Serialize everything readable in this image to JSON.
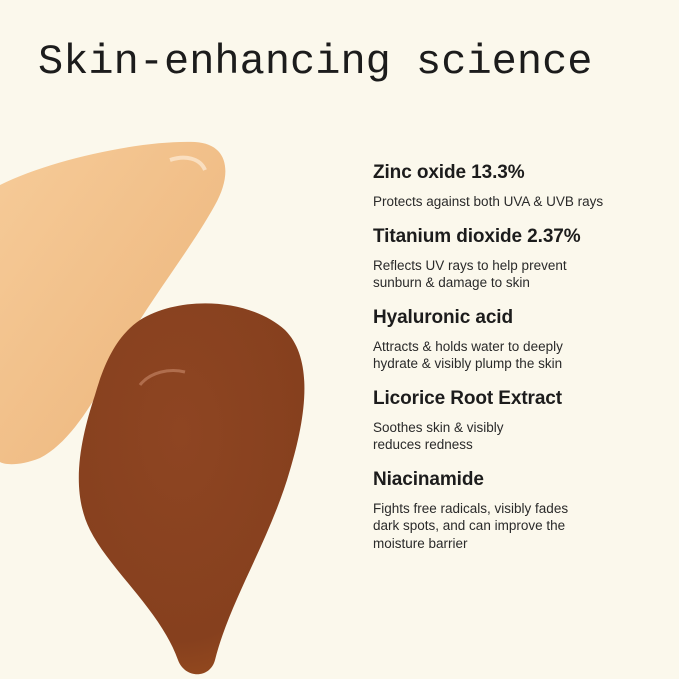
{
  "title": "Skin-enhancing science",
  "colors": {
    "background": "#fbf8ec",
    "light_swatch": "#f2c38f",
    "dark_swatch": "#8a4220"
  },
  "ingredients": [
    {
      "name": "Zinc oxide 13.3%",
      "lines": [
        "Protects against both UVA & UVB rays"
      ]
    },
    {
      "name": "Titanium dioxide 2.37%",
      "lines": [
        "Reflects UV rays to help prevent",
        "sunburn & damage to skin"
      ]
    },
    {
      "name": "Hyaluronic acid",
      "lines": [
        "Attracts & holds water to deeply",
        "hydrate & visibly plump the skin"
      ]
    },
    {
      "name": "Licorice Root Extract",
      "lines": [
        "Soothes skin & visibly",
        "reduces redness"
      ]
    },
    {
      "name": "Niacinamide",
      "lines": [
        "Fights free radicals, visibly fades",
        "dark spots, and can improve the",
        "moisture barrier"
      ]
    }
  ]
}
